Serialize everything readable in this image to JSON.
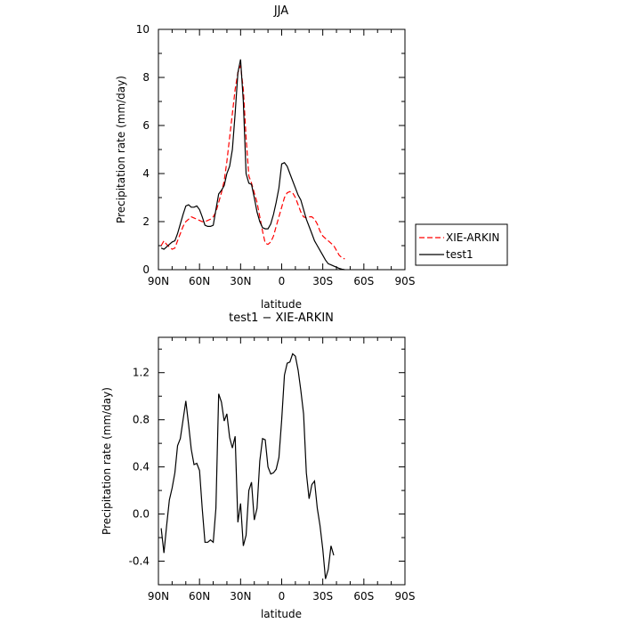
{
  "chart_data": [
    {
      "type": "line",
      "title": "JJA",
      "xlabel": "latitude",
      "ylabel": "Precipitation rate (mm/day)",
      "xlim": [
        90,
        -90
      ],
      "ylim": [
        0,
        10
      ],
      "x_ticks": [
        {
          "value": 90,
          "label": "90N"
        },
        {
          "value": 60,
          "label": "60N"
        },
        {
          "value": 30,
          "label": "30N"
        },
        {
          "value": 0,
          "label": "0"
        },
        {
          "value": -30,
          "label": "30S"
        },
        {
          "value": -60,
          "label": "60S"
        },
        {
          "value": -90,
          "label": "90S"
        }
      ],
      "y_ticks": [
        {
          "value": 0,
          "label": "0"
        },
        {
          "value": 2,
          "label": "2"
        },
        {
          "value": 4,
          "label": "4"
        },
        {
          "value": 6,
          "label": "6"
        },
        {
          "value": 8,
          "label": "8"
        },
        {
          "value": 10,
          "label": "10"
        }
      ],
      "legend_position": "right",
      "series": [
        {
          "name": "XIE-ARKIN",
          "color": "#ff0000",
          "dash": "dashed",
          "points": [
            [
              88,
              1.0
            ],
            [
              86,
              1.2
            ],
            [
              84,
              1.05
            ],
            [
              82,
              0.95
            ],
            [
              80,
              0.85
            ],
            [
              78,
              0.9
            ],
            [
              76,
              1.2
            ],
            [
              74,
              1.5
            ],
            [
              72,
              1.8
            ],
            [
              70,
              2.0
            ],
            [
              68,
              2.1
            ],
            [
              66,
              2.2
            ],
            [
              64,
              2.15
            ],
            [
              62,
              2.1
            ],
            [
              60,
              2.05
            ],
            [
              58,
              2.0
            ],
            [
              56,
              2.0
            ],
            [
              54,
              2.05
            ],
            [
              52,
              2.1
            ],
            [
              50,
              2.2
            ],
            [
              48,
              2.4
            ],
            [
              46,
              2.8
            ],
            [
              44,
              3.2
            ],
            [
              42,
              3.7
            ],
            [
              40,
              4.5
            ],
            [
              38,
              5.5
            ],
            [
              36,
              6.5
            ],
            [
              34,
              7.5
            ],
            [
              32,
              8.2
            ],
            [
              30,
              8.5
            ],
            [
              28,
              7.5
            ],
            [
              26,
              5.5
            ],
            [
              24,
              3.9
            ],
            [
              22,
              3.6
            ],
            [
              20,
              3.2
            ],
            [
              18,
              2.8
            ],
            [
              16,
              2.2
            ],
            [
              14,
              1.6
            ],
            [
              12,
              1.1
            ],
            [
              10,
              1.05
            ],
            [
              8,
              1.15
            ],
            [
              6,
              1.4
            ],
            [
              4,
              1.8
            ],
            [
              2,
              2.2
            ],
            [
              0,
              2.6
            ],
            [
              -2,
              3.0
            ],
            [
              -4,
              3.2
            ],
            [
              -6,
              3.25
            ],
            [
              -8,
              3.2
            ],
            [
              -10,
              3.0
            ],
            [
              -12,
              2.7
            ],
            [
              -14,
              2.4
            ],
            [
              -16,
              2.2
            ],
            [
              -18,
              2.15
            ],
            [
              -20,
              2.2
            ],
            [
              -22,
              2.2
            ],
            [
              -24,
              2.1
            ],
            [
              -26,
              1.9
            ],
            [
              -28,
              1.6
            ],
            [
              -30,
              1.4
            ],
            [
              -32,
              1.3
            ],
            [
              -34,
              1.2
            ],
            [
              -36,
              1.1
            ],
            [
              -38,
              1.0
            ],
            [
              -40,
              0.8
            ],
            [
              -42,
              0.6
            ],
            [
              -44,
              0.5
            ],
            [
              -46,
              0.45
            ]
          ]
        },
        {
          "name": "test1",
          "color": "#000000",
          "dash": "solid",
          "points": [
            [
              88,
              0.9
            ],
            [
              86,
              0.85
            ],
            [
              84,
              0.95
            ],
            [
              82,
              1.05
            ],
            [
              80,
              1.15
            ],
            [
              78,
              1.2
            ],
            [
              76,
              1.5
            ],
            [
              74,
              1.9
            ],
            [
              72,
              2.3
            ],
            [
              70,
              2.65
            ],
            [
              68,
              2.7
            ],
            [
              66,
              2.6
            ],
            [
              64,
              2.6
            ],
            [
              62,
              2.65
            ],
            [
              60,
              2.5
            ],
            [
              58,
              2.2
            ],
            [
              56,
              1.85
            ],
            [
              54,
              1.8
            ],
            [
              52,
              1.8
            ],
            [
              50,
              1.85
            ],
            [
              48,
              2.5
            ],
            [
              46,
              3.15
            ],
            [
              44,
              3.3
            ],
            [
              42,
              3.5
            ],
            [
              40,
              4.0
            ],
            [
              38,
              4.3
            ],
            [
              36,
              5.0
            ],
            [
              34,
              6.5
            ],
            [
              32,
              8.2
            ],
            [
              30,
              8.75
            ],
            [
              28,
              7.0
            ],
            [
              26,
              4.0
            ],
            [
              24,
              3.6
            ],
            [
              22,
              3.55
            ],
            [
              20,
              3.0
            ],
            [
              18,
              2.4
            ],
            [
              16,
              2.0
            ],
            [
              14,
              1.75
            ],
            [
              12,
              1.7
            ],
            [
              10,
              1.7
            ],
            [
              8,
              1.9
            ],
            [
              6,
              2.3
            ],
            [
              4,
              2.8
            ],
            [
              2,
              3.4
            ],
            [
              0,
              4.4
            ],
            [
              -2,
              4.45
            ],
            [
              -4,
              4.3
            ],
            [
              -6,
              4.0
            ],
            [
              -8,
              3.7
            ],
            [
              -10,
              3.4
            ],
            [
              -12,
              3.1
            ],
            [
              -14,
              2.9
            ],
            [
              -16,
              2.5
            ],
            [
              -18,
              2.1
            ],
            [
              -20,
              1.8
            ],
            [
              -22,
              1.5
            ],
            [
              -24,
              1.2
            ],
            [
              -26,
              1.0
            ],
            [
              -28,
              0.8
            ],
            [
              -30,
              0.6
            ],
            [
              -32,
              0.4
            ],
            [
              -34,
              0.25
            ],
            [
              -36,
              0.2
            ],
            [
              -38,
              0.15
            ],
            [
              -40,
              0.1
            ],
            [
              -42,
              0.05
            ],
            [
              -44,
              0.02
            ],
            [
              -46,
              0.0
            ]
          ]
        }
      ]
    },
    {
      "type": "line",
      "title": "test1 − XIE-ARKIN",
      "xlabel": "latitude",
      "ylabel": "Precipitation rate (mm/day)",
      "xlim": [
        90,
        -90
      ],
      "ylim": [
        -0.6,
        1.5
      ],
      "x_ticks": [
        {
          "value": 90,
          "label": "90N"
        },
        {
          "value": 60,
          "label": "60N"
        },
        {
          "value": 30,
          "label": "30N"
        },
        {
          "value": 0,
          "label": "0"
        },
        {
          "value": -30,
          "label": "30S"
        },
        {
          "value": -60,
          "label": "60S"
        },
        {
          "value": -90,
          "label": "90S"
        }
      ],
      "y_ticks": [
        {
          "value": -0.4,
          "label": "-0.4"
        },
        {
          "value": 0.0,
          "label": "0.0"
        },
        {
          "value": 0.4,
          "label": "0.4"
        },
        {
          "value": 0.8,
          "label": "0.8"
        },
        {
          "value": 1.2,
          "label": "1.2"
        }
      ],
      "series": [
        {
          "name": "",
          "color": "#000000",
          "dash": "solid",
          "points": [
            [
              88,
              -0.12
            ],
            [
              86,
              -0.33
            ],
            [
              84,
              -0.1
            ],
            [
              82,
              0.12
            ],
            [
              80,
              0.22
            ],
            [
              78,
              0.35
            ],
            [
              76,
              0.58
            ],
            [
              74,
              0.64
            ],
            [
              72,
              0.8
            ],
            [
              70,
              0.96
            ],
            [
              68,
              0.76
            ],
            [
              66,
              0.55
            ],
            [
              64,
              0.42
            ],
            [
              62,
              0.43
            ],
            [
              60,
              0.37
            ],
            [
              58,
              0.05
            ],
            [
              56,
              -0.24
            ],
            [
              54,
              -0.24
            ],
            [
              52,
              -0.22
            ],
            [
              50,
              -0.24
            ],
            [
              48,
              0.05
            ],
            [
              46,
              1.02
            ],
            [
              44,
              0.95
            ],
            [
              42,
              0.79
            ],
            [
              40,
              0.85
            ],
            [
              38,
              0.65
            ],
            [
              36,
              0.56
            ],
            [
              34,
              0.66
            ],
            [
              32,
              -0.07
            ],
            [
              30,
              0.09
            ],
            [
              28,
              -0.27
            ],
            [
              26,
              -0.18
            ],
            [
              24,
              0.2
            ],
            [
              22,
              0.27
            ],
            [
              20,
              -0.05
            ],
            [
              18,
              0.05
            ],
            [
              16,
              0.45
            ],
            [
              14,
              0.64
            ],
            [
              12,
              0.63
            ],
            [
              10,
              0.4
            ],
            [
              8,
              0.34
            ],
            [
              6,
              0.35
            ],
            [
              4,
              0.38
            ],
            [
              2,
              0.48
            ],
            [
              0,
              0.8
            ],
            [
              -2,
              1.18
            ],
            [
              -4,
              1.28
            ],
            [
              -6,
              1.29
            ],
            [
              -8,
              1.36
            ],
            [
              -10,
              1.34
            ],
            [
              -12,
              1.22
            ],
            [
              -14,
              1.05
            ],
            [
              -16,
              0.85
            ],
            [
              -18,
              0.35
            ],
            [
              -20,
              0.13
            ],
            [
              -22,
              0.25
            ],
            [
              -24,
              0.28
            ],
            [
              -26,
              0.05
            ],
            [
              -28,
              -0.1
            ],
            [
              -30,
              -0.3
            ],
            [
              -32,
              -0.55
            ],
            [
              -34,
              -0.47
            ],
            [
              -36,
              -0.27
            ],
            [
              -38,
              -0.35
            ]
          ]
        }
      ]
    }
  ]
}
